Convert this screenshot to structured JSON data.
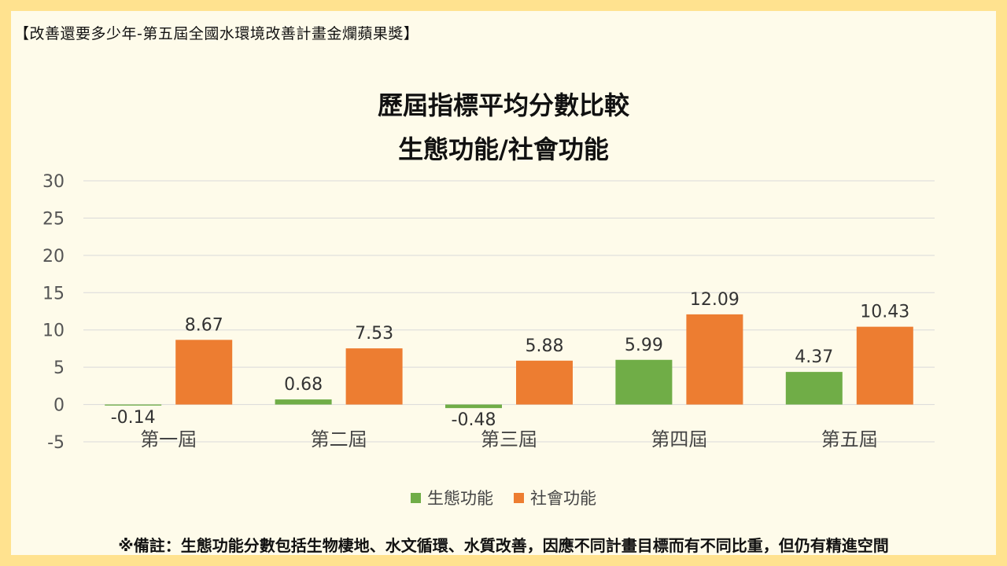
{
  "header_note": "【改善還要多少年-第五屆全國水環境改善計畫金爛蘋果獎】",
  "footnote": "※備註：生態功能分數包括生物棲地、水文循環、水質改善，因應不同計畫目標而有不同比重，但仍有精進空間",
  "chart_data": {
    "type": "bar",
    "title": [
      "歷屆指標平均分數比較",
      "生態功能/社會功能"
    ],
    "categories": [
      "第一屆",
      "第二屆",
      "第三屆",
      "第四屆",
      "第五屆"
    ],
    "series": [
      {
        "name": "生態功能",
        "color": "#70ad47",
        "values": [
          -0.14,
          0.68,
          -0.48,
          5.99,
          4.37
        ],
        "labels": [
          "-0.14",
          "0.68",
          "-0.48",
          "5.99",
          "4.37"
        ]
      },
      {
        "name": "社會功能",
        "color": "#ed7d31",
        "values": [
          8.67,
          7.53,
          5.88,
          12.09,
          10.43
        ],
        "labels": [
          "8.67",
          "7.53",
          "5.88",
          "12.09",
          "10.43"
        ]
      }
    ],
    "ylim": [
      -5,
      30
    ],
    "yticks": [
      "30",
      "25",
      "20",
      "15",
      "10",
      "5",
      "0",
      "-5"
    ],
    "grid": true,
    "legend_position": "bottom"
  }
}
